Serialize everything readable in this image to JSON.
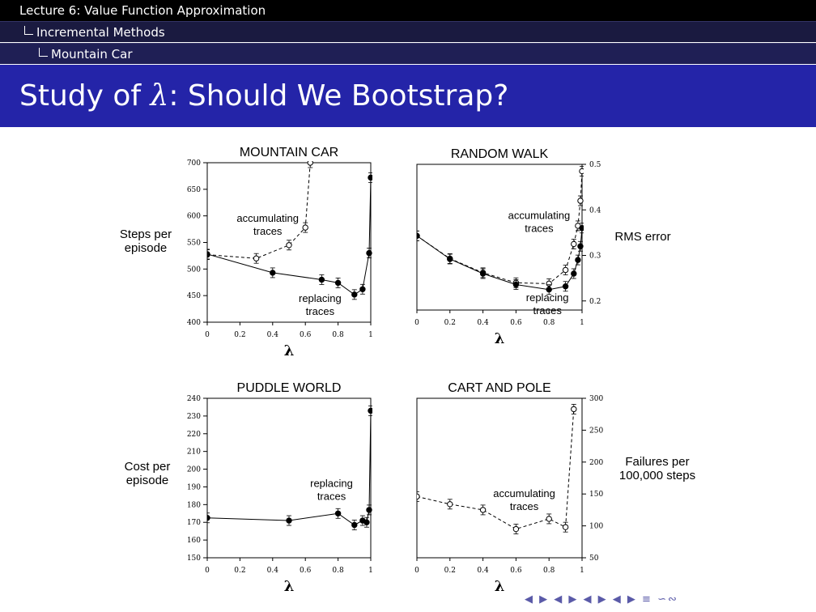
{
  "header": {
    "breadcrumb_1": "Lecture 6: Value Function Approximation",
    "breadcrumb_2": "Incremental Methods",
    "breadcrumb_3": "Mountain Car"
  },
  "slide": {
    "title_prefix": "Study of ",
    "title_lambda": "λ",
    "title_suffix": ": Should We Bootstrap?"
  },
  "footer_nav": "◀ ▶ ◀ ▶ ◀ ▶ ◀ ▶ ≡ ∽∾",
  "chart_data": [
    {
      "type": "line",
      "title": "MOUNTAIN CAR",
      "xlabel": "λ",
      "ylabel": "Steps per episode",
      "ylabel_lines": [
        "Steps per",
        "episode"
      ],
      "ylabel_side": "left",
      "xlim": [
        0,
        1
      ],
      "ylim": [
        400,
        700
      ],
      "xticks": [
        0,
        0.2,
        0.4,
        0.6,
        0.8,
        1
      ],
      "yticks": [
        400,
        450,
        500,
        550,
        600,
        650,
        700
      ],
      "series": [
        {
          "name": "accumulating traces",
          "style": "dashed",
          "marker": "open",
          "x": [
            0,
            0.3,
            0.5,
            0.6,
            0.63
          ],
          "y": [
            527,
            520,
            545,
            578,
            700
          ]
        },
        {
          "name": "replacing traces",
          "style": "solid",
          "marker": "filled",
          "x": [
            0,
            0.4,
            0.7,
            0.8,
            0.9,
            0.95,
            0.99,
            1.0
          ],
          "y": [
            528,
            493,
            480,
            474,
            452,
            462,
            530,
            672
          ]
        }
      ],
      "annotations": [
        {
          "lines": [
            "accumulating",
            "traces"
          ],
          "x": 0.37,
          "y": 589
        },
        {
          "lines": [
            "replacing",
            "traces"
          ],
          "x": 0.69,
          "y": 438
        }
      ]
    },
    {
      "type": "line",
      "title": "RANDOM WALK",
      "xlabel": "λ",
      "ylabel": "RMS error",
      "ylabel_lines": [
        "RMS error"
      ],
      "ylabel_side": "right",
      "xlim": [
        0,
        1
      ],
      "ylim": [
        0.18,
        0.5
      ],
      "xticks": [
        0,
        0.2,
        0.4,
        0.6,
        0.8,
        1
      ],
      "yticks": [
        0.2,
        0.3,
        0.4,
        0.5
      ],
      "series": [
        {
          "name": "accumulating traces",
          "style": "dashed",
          "marker": "open",
          "x": [
            0,
            0.2,
            0.4,
            0.6,
            0.8,
            0.9,
            0.95,
            0.975,
            0.99,
            1.0
          ],
          "y": [
            0.343,
            0.293,
            0.262,
            0.24,
            0.238,
            0.268,
            0.325,
            0.365,
            0.42,
            0.485
          ]
        },
        {
          "name": "replacing traces",
          "style": "solid",
          "marker": "filled",
          "x": [
            0,
            0.2,
            0.4,
            0.6,
            0.8,
            0.9,
            0.95,
            0.975,
            0.99,
            1.0
          ],
          "y": [
            0.343,
            0.292,
            0.26,
            0.236,
            0.225,
            0.232,
            0.26,
            0.29,
            0.32,
            0.36
          ]
        }
      ],
      "annotations": [
        {
          "lines": [
            "accumulating",
            "traces"
          ],
          "x": 0.74,
          "y": 0.38
        },
        {
          "lines": [
            "replacing",
            "traces"
          ],
          "x": 0.79,
          "y": 0.2
        }
      ]
    },
    {
      "type": "line",
      "title": "PUDDLE WORLD",
      "xlabel": "λ",
      "ylabel": "Cost per episode",
      "ylabel_lines": [
        "Cost per",
        "episode"
      ],
      "ylabel_side": "left",
      "xlim": [
        0,
        1
      ],
      "ylim": [
        150,
        240
      ],
      "xticks": [
        0,
        0.2,
        0.4,
        0.6,
        0.8,
        1
      ],
      "yticks": [
        150,
        160,
        170,
        180,
        190,
        200,
        210,
        220,
        230,
        240
      ],
      "series": [
        {
          "name": "replacing traces",
          "style": "solid",
          "marker": "filled",
          "x": [
            0,
            0.5,
            0.8,
            0.9,
            0.95,
            0.975,
            0.99,
            1.0
          ],
          "y": [
            172.5,
            171,
            175,
            168.5,
            171,
            170,
            177,
            233
          ]
        }
      ],
      "annotations": [
        {
          "lines": [
            "replacing",
            "traces"
          ],
          "x": 0.76,
          "y": 190
        }
      ]
    },
    {
      "type": "line",
      "title": "CART AND POLE",
      "xlabel": "λ",
      "ylabel": "Failures per 100,000 steps",
      "ylabel_lines": [
        "Failures per",
        "100,000 steps"
      ],
      "ylabel_side": "right",
      "xlim": [
        0,
        1
      ],
      "ylim": [
        50,
        300
      ],
      "xticks": [
        0,
        0.2,
        0.4,
        0.6,
        0.8,
        1
      ],
      "yticks": [
        50,
        100,
        150,
        200,
        250,
        300
      ],
      "series": [
        {
          "name": "accumulating traces",
          "style": "dashed",
          "marker": "open",
          "x": [
            0,
            0.2,
            0.4,
            0.6,
            0.8,
            0.9,
            0.95
          ],
          "y": [
            146,
            134,
            125,
            95,
            111,
            98,
            283
          ]
        }
      ],
      "annotations": [
        {
          "lines": [
            "accumulating",
            "traces"
          ],
          "x": 0.65,
          "y": 145
        }
      ]
    }
  ]
}
